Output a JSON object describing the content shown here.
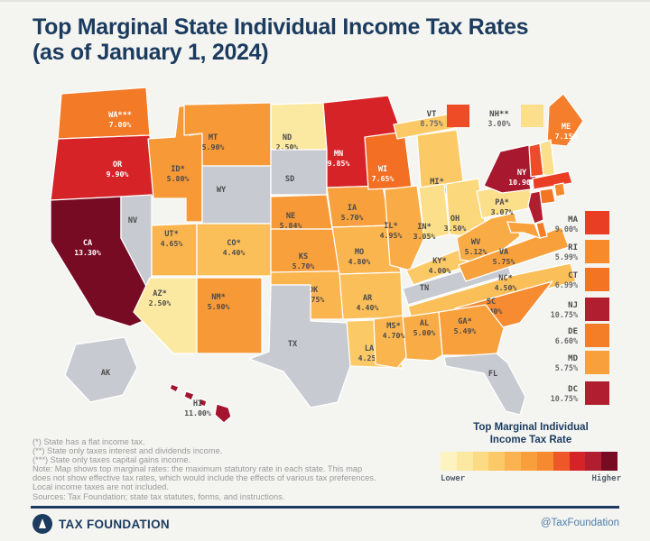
{
  "title": {
    "line1": "Top Marginal State Individual Income Tax Rates",
    "line2": "(as of January 1, 2024)"
  },
  "map": {
    "no_tax_color": "#c7cbd1",
    "states": [
      {
        "id": "WA",
        "label": "WA***",
        "rate": "7.00%",
        "color": "#f37a27",
        "ink": "#ffffff"
      },
      {
        "id": "OR",
        "label": "OR",
        "rate": "9.90%",
        "color": "#d62327",
        "ink": "#ffffff"
      },
      {
        "id": "CA",
        "label": "CA",
        "rate": "13.30%",
        "color": "#770b24",
        "ink": "#ffffff"
      },
      {
        "id": "NV",
        "label": "NV",
        "rate": "",
        "color": "#c7cbd1",
        "ink": "#4b4b4b"
      },
      {
        "id": "ID",
        "label": "ID*",
        "rate": "5.80%",
        "color": "#f79936",
        "ink": "#4b4b4b"
      },
      {
        "id": "MT",
        "label": "MT",
        "rate": "5.90%",
        "color": "#f79936",
        "ink": "#4b4b4b"
      },
      {
        "id": "WY",
        "label": "WY",
        "rate": "",
        "color": "#c7cbd1",
        "ink": "#4b4b4b"
      },
      {
        "id": "UT",
        "label": "UT*",
        "rate": "4.65%",
        "color": "#fab54e",
        "ink": "#4b4b4b"
      },
      {
        "id": "CO",
        "label": "CO*",
        "rate": "4.40%",
        "color": "#fbbf59",
        "ink": "#4b4b4b"
      },
      {
        "id": "AZ",
        "label": "AZ*",
        "rate": "2.50%",
        "color": "#fce9a1",
        "ink": "#4b4b4b"
      },
      {
        "id": "NM",
        "label": "NM*",
        "rate": "5.90%",
        "color": "#f79936",
        "ink": "#4b4b4b"
      },
      {
        "id": "ND",
        "label": "ND",
        "rate": "2.50%",
        "color": "#fce9a1",
        "ink": "#4b4b4b"
      },
      {
        "id": "SD",
        "label": "SD",
        "rate": "",
        "color": "#c7cbd1",
        "ink": "#4b4b4b"
      },
      {
        "id": "NE",
        "label": "NE",
        "rate": "5.84%",
        "color": "#f79936",
        "ink": "#4b4b4b"
      },
      {
        "id": "KS",
        "label": "KS",
        "rate": "5.70%",
        "color": "#f8a03c",
        "ink": "#4b4b4b"
      },
      {
        "id": "OK",
        "label": "OK",
        "rate": "4.75%",
        "color": "#fab54e",
        "ink": "#4b4b4b"
      },
      {
        "id": "TX",
        "label": "TX",
        "rate": "",
        "color": "#c7cbd1",
        "ink": "#4b4b4b"
      },
      {
        "id": "MN",
        "label": "MN",
        "rate": "9.85%",
        "color": "#d62327",
        "ink": "#ffffff"
      },
      {
        "id": "IA",
        "label": "IA",
        "rate": "5.70%",
        "color": "#f8a03c",
        "ink": "#4b4b4b"
      },
      {
        "id": "MO",
        "label": "MO",
        "rate": "4.80%",
        "color": "#fab54e",
        "ink": "#4b4b4b"
      },
      {
        "id": "AR",
        "label": "AR",
        "rate": "4.40%",
        "color": "#fbbf59",
        "ink": "#4b4b4b"
      },
      {
        "id": "LA",
        "label": "LA",
        "rate": "4.25%",
        "color": "#fbca66",
        "ink": "#4b4b4b"
      },
      {
        "id": "WI",
        "label": "WI",
        "rate": "7.65%",
        "color": "#f26f24",
        "ink": "#ffffff"
      },
      {
        "id": "MI",
        "label": "MI*",
        "rate": "4.25%",
        "color": "#fbca66",
        "ink": "#4b4b4b"
      },
      {
        "id": "IL",
        "label": "IL*",
        "rate": "4.95%",
        "color": "#f9ab45",
        "ink": "#4b4b4b"
      },
      {
        "id": "IN",
        "label": "IN*",
        "rate": "3.05%",
        "color": "#fcdf8a",
        "ink": "#4b4b4b"
      },
      {
        "id": "OH",
        "label": "OH",
        "rate": "3.50%",
        "color": "#fcd87c",
        "ink": "#4b4b4b"
      },
      {
        "id": "KY",
        "label": "KY*",
        "rate": "4.00%",
        "color": "#fbca66",
        "ink": "#4b4b4b"
      },
      {
        "id": "TN",
        "label": "TN",
        "rate": "",
        "color": "#c7cbd1",
        "ink": "#4b4b4b"
      },
      {
        "id": "WV",
        "label": "WV",
        "rate": "5.12%",
        "color": "#f9ab45",
        "ink": "#4b4b4b"
      },
      {
        "id": "VA",
        "label": "VA",
        "rate": "5.75%",
        "color": "#f8a03c",
        "ink": "#4b4b4b"
      },
      {
        "id": "NC",
        "label": "NC*",
        "rate": "4.50%",
        "color": "#fbbf59",
        "ink": "#4b4b4b"
      },
      {
        "id": "SC",
        "label": "SC",
        "rate": "6.40%",
        "color": "#f68b31",
        "ink": "#4b4b4b"
      },
      {
        "id": "GA",
        "label": "GA*",
        "rate": "5.49%",
        "color": "#f8a03c",
        "ink": "#4b4b4b"
      },
      {
        "id": "AL",
        "label": "AL",
        "rate": "5.00%",
        "color": "#f9ab45",
        "ink": "#4b4b4b"
      },
      {
        "id": "MS",
        "label": "MS*",
        "rate": "4.70%",
        "color": "#fab54e",
        "ink": "#4b4b4b"
      },
      {
        "id": "FL",
        "label": "FL",
        "rate": "",
        "color": "#c7cbd1",
        "ink": "#4b4b4b"
      },
      {
        "id": "PA",
        "label": "PA*",
        "rate": "3.07%",
        "color": "#fcdf8a",
        "ink": "#4b4b4b"
      },
      {
        "id": "NY",
        "label": "NY",
        "rate": "10.90%",
        "color": "#a8182f",
        "ink": "#ffffff"
      },
      {
        "id": "ME",
        "label": "ME",
        "rate": "7.15%",
        "color": "#f47e2b",
        "ink": "#ffffff"
      },
      {
        "id": "VT",
        "label": "",
        "rate": "",
        "color": "#ee4c27",
        "ink": "#4b4b4b"
      },
      {
        "id": "NH",
        "label": "",
        "rate": "",
        "color": "#fcdf8a",
        "ink": "#4b4b4b"
      },
      {
        "id": "MA",
        "label": "",
        "rate": "",
        "color": "#ea3e24",
        "ink": "#4b4b4b"
      },
      {
        "id": "CT",
        "label": "",
        "rate": "",
        "color": "#f37423",
        "ink": "#4b4b4b"
      },
      {
        "id": "RI",
        "label": "",
        "rate": "",
        "color": "#f78b2c",
        "ink": "#4b4b4b"
      },
      {
        "id": "NJ",
        "label": "",
        "rate": "",
        "color": "#b01e2f",
        "ink": "#4b4b4b"
      },
      {
        "id": "DE",
        "label": "",
        "rate": "",
        "color": "#f47d27",
        "ink": "#4b4b4b"
      },
      {
        "id": "MD",
        "label": "",
        "rate": "",
        "color": "#f8a03c",
        "ink": "#4b4b4b"
      },
      {
        "id": "AK",
        "label": "AK",
        "rate": "",
        "color": "#c7cbd1",
        "ink": "#4b4b4b"
      },
      {
        "id": "HI",
        "label": "HI",
        "rate": "11.00%",
        "color": "#a3142e",
        "ink": "#4b4b4b"
      }
    ],
    "callouts": [
      {
        "id": "VT",
        "label": "VT",
        "rate": "8.75%",
        "color": "#ee4c27"
      },
      {
        "id": "NH",
        "label": "NH**",
        "rate": "3.00%",
        "color": "#fcdf8a"
      }
    ],
    "side_list": [
      {
        "id": "MA",
        "label": "MA",
        "rate": "9.00%",
        "color": "#ea3e24"
      },
      {
        "id": "RI",
        "label": "RI",
        "rate": "5.99%",
        "color": "#f78b2c"
      },
      {
        "id": "CT",
        "label": "CT",
        "rate": "6.99%",
        "color": "#f37423"
      },
      {
        "id": "NJ",
        "label": "NJ",
        "rate": "10.75%",
        "color": "#b01e2f"
      },
      {
        "id": "DE",
        "label": "DE",
        "rate": "6.60%",
        "color": "#f47d27"
      },
      {
        "id": "MD",
        "label": "MD",
        "rate": "5.75%",
        "color": "#f8a03c"
      },
      {
        "id": "DC",
        "label": "DC",
        "rate": "10.75%",
        "color": "#b01e2f"
      }
    ]
  },
  "legend": {
    "title_line1": "Top Marginal Individual",
    "title_line2": "Income Tax Rate",
    "lower": "Lower",
    "higher": "Higher",
    "ramp": [
      "#fdf3c0",
      "#fce9a1",
      "#fbdc84",
      "#fbc967",
      "#fab350",
      "#f89f3b",
      "#f58a31",
      "#ee5727",
      "#d62327",
      "#b01e2f",
      "#770b24"
    ]
  },
  "footnotes": [
    "(*) State has a flat income tax.",
    "(**) State only taxes interest and dividends income.",
    "(***) State only taxes capital gains income.",
    "Note: Map shows top marginal rates: the maximum statutory rate in each state. This map",
    "does not show effective tax rates, which would include the effects of various tax preferences.",
    "Local income taxes are not included.",
    "Sources: Tax Foundation; state tax statutes, forms, and instructions."
  ],
  "footer": {
    "brand": "TAX FOUNDATION",
    "handle": "@TaxFoundation"
  }
}
